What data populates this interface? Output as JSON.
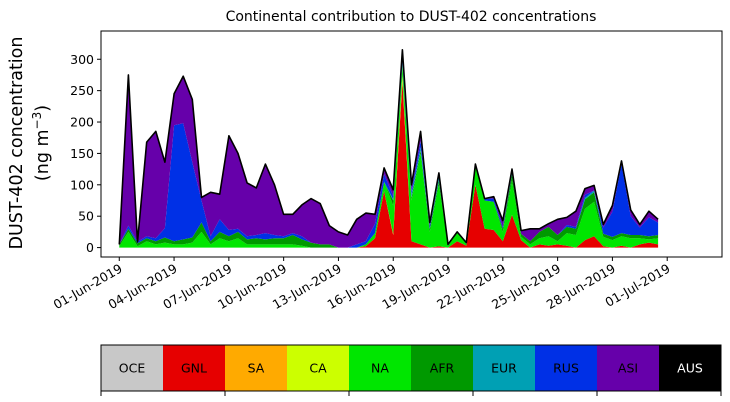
{
  "chart_data": {
    "type": "area",
    "stacked": true,
    "title": "Continental contribution to DUST-402 concentrations",
    "ylabel_line1": "DUST-402 concentration",
    "ylabel_line2_prefix": "(ng m",
    "ylabel_line2_sup": "−3",
    "ylabel_line2_suffix": ")",
    "xlabel": "",
    "ylim": [
      -15,
      345
    ],
    "y_ticks": [
      0,
      50,
      100,
      150,
      200,
      250,
      300
    ],
    "x_range": [
      "2019-05-31",
      "2019-07-04"
    ],
    "x_tick_labels": [
      "01-Jun-2019",
      "04-Jun-2019",
      "07-Jun-2019",
      "10-Jun-2019",
      "13-Jun-2019",
      "16-Jun-2019",
      "19-Jun-2019",
      "22-Jun-2019",
      "25-Jun-2019",
      "28-Jun-2019",
      "01-Jul-2019"
    ],
    "x_tick_dates": [
      "2019-06-01",
      "2019-06-04",
      "2019-06-07",
      "2019-06-10",
      "2019-06-13",
      "2019-06-16",
      "2019-06-19",
      "2019-06-22",
      "2019-06-25",
      "2019-06-28",
      "2019-07-01"
    ],
    "x": [
      "2019-06-01",
      "2019-06-01 12:00",
      "2019-06-02",
      "2019-06-02 12:00",
      "2019-06-03",
      "2019-06-03 12:00",
      "2019-06-04",
      "2019-06-04 12:00",
      "2019-06-05",
      "2019-06-05 12:00",
      "2019-06-06",
      "2019-06-06 12:00",
      "2019-06-07",
      "2019-06-07 12:00",
      "2019-06-08",
      "2019-06-08 12:00",
      "2019-06-09",
      "2019-06-09 12:00",
      "2019-06-10",
      "2019-06-10 12:00",
      "2019-06-11",
      "2019-06-11 12:00",
      "2019-06-12",
      "2019-06-12 12:00",
      "2019-06-13",
      "2019-06-13 12:00",
      "2019-06-14",
      "2019-06-14 12:00",
      "2019-06-15",
      "2019-06-15 12:00",
      "2019-06-16",
      "2019-06-16 12:00",
      "2019-06-17",
      "2019-06-17 12:00",
      "2019-06-18",
      "2019-06-18 12:00",
      "2019-06-19",
      "2019-06-19 12:00",
      "2019-06-20",
      "2019-06-20 12:00",
      "2019-06-21",
      "2019-06-21 12:00",
      "2019-06-22",
      "2019-06-22 12:00",
      "2019-06-23",
      "2019-06-23 12:00",
      "2019-06-24",
      "2019-06-24 12:00",
      "2019-06-25",
      "2019-06-25 12:00",
      "2019-06-26",
      "2019-06-26 12:00",
      "2019-06-27",
      "2019-06-27 12:00",
      "2019-06-28",
      "2019-06-28 12:00",
      "2019-06-29",
      "2019-06-29 12:00",
      "2019-06-30",
      "2019-06-30 12:00"
    ],
    "series": [
      {
        "name": "OCE",
        "color": "#c8c8c8",
        "values": [
          0,
          0,
          0,
          0,
          0,
          0,
          0,
          0,
          0,
          0,
          0,
          0,
          0,
          0,
          0,
          0,
          0,
          0,
          0,
          0,
          0,
          0,
          0,
          0,
          0,
          0,
          0,
          0,
          0,
          0,
          0,
          0,
          0,
          0,
          0,
          0,
          0,
          0,
          0,
          0,
          0,
          0,
          0,
          0,
          0,
          0,
          0,
          0,
          0,
          0,
          0,
          0,
          0,
          0,
          0,
          0,
          0,
          0,
          0,
          0
        ]
      },
      {
        "name": "GNL",
        "color": "#e60000",
        "values": [
          0,
          0,
          0,
          0,
          0,
          0,
          0,
          0,
          0,
          0,
          0,
          0,
          0,
          0,
          0,
          0,
          0,
          0,
          0,
          0,
          0,
          0,
          0,
          0,
          0,
          0,
          0,
          2,
          15,
          90,
          20,
          265,
          10,
          5,
          0,
          2,
          0,
          10,
          3,
          100,
          30,
          28,
          10,
          52,
          12,
          0,
          5,
          3,
          5,
          3,
          0,
          12,
          18,
          2,
          0,
          3,
          0,
          5,
          8,
          5
        ]
      },
      {
        "name": "SA",
        "color": "#ffaa00",
        "values": [
          0,
          0,
          0,
          0,
          0,
          0,
          0,
          0,
          0,
          0,
          0,
          0,
          0,
          0,
          0,
          0,
          0,
          0,
          0,
          0,
          0,
          0,
          0,
          0,
          0,
          0,
          0,
          0,
          0,
          0,
          0,
          0,
          0,
          0,
          0,
          0,
          0,
          0,
          0,
          0,
          0,
          0,
          0,
          0,
          0,
          0,
          0,
          0,
          0,
          0,
          0,
          0,
          0,
          0,
          0,
          0,
          0,
          0,
          0,
          0
        ]
      },
      {
        "name": "CA",
        "color": "#ccff00",
        "values": [
          0,
          0,
          0,
          0,
          0,
          0,
          0,
          0,
          0,
          0,
          0,
          0,
          0,
          0,
          0,
          0,
          0,
          0,
          0,
          0,
          0,
          0,
          0,
          0,
          0,
          0,
          0,
          0,
          0,
          0,
          2,
          10,
          0,
          0,
          0,
          0,
          0,
          0,
          0,
          0,
          0,
          0,
          0,
          0,
          0,
          0,
          0,
          0,
          0,
          0,
          0,
          0,
          0,
          0,
          0,
          0,
          0,
          0,
          0,
          0
        ]
      },
      {
        "name": "NA",
        "color": "#00e600",
        "values": [
          2,
          25,
          2,
          10,
          5,
          8,
          5,
          5,
          8,
          25,
          5,
          15,
          10,
          15,
          5,
          5,
          5,
          5,
          5,
          5,
          3,
          0,
          0,
          0,
          0,
          0,
          0,
          3,
          8,
          15,
          45,
          12,
          65,
          145,
          25,
          100,
          3,
          15,
          3,
          30,
          45,
          45,
          15,
          55,
          5,
          5,
          10,
          15,
          5,
          20,
          20,
          50,
          55,
          15,
          12,
          15,
          15,
          10,
          5,
          10
        ]
      },
      {
        "name": "AFR",
        "color": "#009900",
        "values": [
          3,
          5,
          5,
          5,
          5,
          8,
          5,
          8,
          8,
          15,
          5,
          10,
          8,
          10,
          8,
          10,
          8,
          10,
          10,
          15,
          10,
          8,
          5,
          5,
          0,
          0,
          0,
          0,
          0,
          0,
          8,
          5,
          5,
          5,
          5,
          5,
          0,
          0,
          0,
          0,
          0,
          0,
          5,
          10,
          5,
          5,
          10,
          15,
          10,
          10,
          10,
          15,
          15,
          5,
          5,
          5,
          5,
          5,
          5,
          5
        ]
      },
      {
        "name": "EUR",
        "color": "#00a0b4",
        "values": [
          0,
          0,
          0,
          0,
          0,
          0,
          0,
          0,
          0,
          0,
          0,
          0,
          0,
          0,
          0,
          0,
          0,
          0,
          0,
          0,
          0,
          0,
          0,
          0,
          0,
          0,
          0,
          0,
          0,
          0,
          2,
          5,
          5,
          5,
          0,
          5,
          0,
          0,
          0,
          0,
          0,
          0,
          0,
          3,
          0,
          0,
          0,
          0,
          0,
          0,
          0,
          2,
          3,
          0,
          0,
          0,
          0,
          0,
          0,
          0
        ]
      },
      {
        "name": "RUS",
        "color": "#0030e6",
        "values": [
          0,
          5,
          2,
          3,
          5,
          15,
          185,
          185,
          120,
          35,
          8,
          20,
          10,
          5,
          5,
          5,
          10,
          5,
          3,
          3,
          5,
          0,
          0,
          0,
          0,
          0,
          5,
          5,
          15,
          12,
          5,
          8,
          5,
          10,
          5,
          2,
          2,
          0,
          2,
          3,
          3,
          5,
          3,
          0,
          0,
          0,
          0,
          0,
          0,
          3,
          3,
          5,
          0,
          10,
          40,
          110,
          30,
          12,
          30,
          20
        ]
      },
      {
        "name": "ASI",
        "color": "#6600aa",
        "values": [
          0,
          240,
          0,
          150,
          170,
          105,
          50,
          75,
          100,
          5,
          70,
          40,
          150,
          120,
          85,
          75,
          110,
          80,
          35,
          30,
          50,
          70,
          65,
          30,
          25,
          20,
          40,
          45,
          15,
          10,
          10,
          10,
          10,
          15,
          5,
          5,
          0,
          0,
          0,
          0,
          0,
          3,
          10,
          5,
          5,
          20,
          5,
          5,
          25,
          12,
          25,
          10,
          8,
          5,
          10,
          5,
          10,
          5,
          10,
          5
        ]
      },
      {
        "name": "AUS",
        "color": "#000000",
        "values": [
          0,
          0,
          0,
          0,
          0,
          0,
          0,
          0,
          0,
          0,
          0,
          0,
          0,
          0,
          0,
          0,
          0,
          0,
          0,
          0,
          0,
          0,
          0,
          0,
          0,
          0,
          0,
          0,
          0,
          0,
          0,
          0,
          0,
          0,
          0,
          0,
          0,
          0,
          0,
          0,
          0,
          0,
          0,
          0,
          0,
          0,
          0,
          0,
          0,
          0,
          0,
          0,
          0,
          0,
          0,
          0,
          0,
          0,
          0,
          0
        ]
      }
    ],
    "legend": {
      "placement": "bottom",
      "style": "colorbar"
    }
  }
}
